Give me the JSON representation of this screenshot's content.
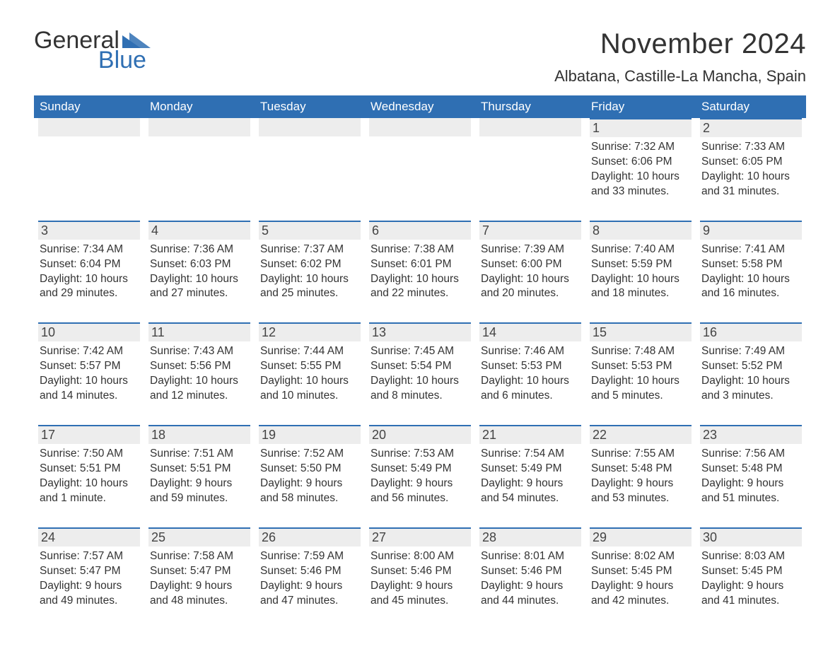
{
  "brand": {
    "logo_top": "General",
    "logo_bottom": "Blue",
    "logo_text_color": "#333333",
    "logo_accent_color": "#2f6fb3"
  },
  "title": {
    "month_year": "November 2024",
    "location": "Albatana, Castille-La Mancha, Spain",
    "title_fontsize": 40,
    "location_fontsize": 22,
    "text_color": "#333333"
  },
  "styling": {
    "header_bg": "#2f6fb3",
    "header_text": "#ffffff",
    "day_band_bg": "#ededed",
    "day_band_border": "#2f6fb3",
    "body_text": "#333333",
    "page_bg": "#ffffff",
    "weekday_fontsize": 17,
    "daynum_fontsize": 18,
    "detail_fontsize": 15.5
  },
  "weekdays": [
    "Sunday",
    "Monday",
    "Tuesday",
    "Wednesday",
    "Thursday",
    "Friday",
    "Saturday"
  ],
  "weeks": [
    [
      {
        "blank": true
      },
      {
        "blank": true
      },
      {
        "blank": true
      },
      {
        "blank": true
      },
      {
        "blank": true
      },
      {
        "num": "1",
        "sunrise": "Sunrise: 7:32 AM",
        "sunset": "Sunset: 6:06 PM",
        "day1": "Daylight: 10 hours",
        "day2": "and 33 minutes."
      },
      {
        "num": "2",
        "sunrise": "Sunrise: 7:33 AM",
        "sunset": "Sunset: 6:05 PM",
        "day1": "Daylight: 10 hours",
        "day2": "and 31 minutes."
      }
    ],
    [
      {
        "num": "3",
        "sunrise": "Sunrise: 7:34 AM",
        "sunset": "Sunset: 6:04 PM",
        "day1": "Daylight: 10 hours",
        "day2": "and 29 minutes."
      },
      {
        "num": "4",
        "sunrise": "Sunrise: 7:36 AM",
        "sunset": "Sunset: 6:03 PM",
        "day1": "Daylight: 10 hours",
        "day2": "and 27 minutes."
      },
      {
        "num": "5",
        "sunrise": "Sunrise: 7:37 AM",
        "sunset": "Sunset: 6:02 PM",
        "day1": "Daylight: 10 hours",
        "day2": "and 25 minutes."
      },
      {
        "num": "6",
        "sunrise": "Sunrise: 7:38 AM",
        "sunset": "Sunset: 6:01 PM",
        "day1": "Daylight: 10 hours",
        "day2": "and 22 minutes."
      },
      {
        "num": "7",
        "sunrise": "Sunrise: 7:39 AM",
        "sunset": "Sunset: 6:00 PM",
        "day1": "Daylight: 10 hours",
        "day2": "and 20 minutes."
      },
      {
        "num": "8",
        "sunrise": "Sunrise: 7:40 AM",
        "sunset": "Sunset: 5:59 PM",
        "day1": "Daylight: 10 hours",
        "day2": "and 18 minutes."
      },
      {
        "num": "9",
        "sunrise": "Sunrise: 7:41 AM",
        "sunset": "Sunset: 5:58 PM",
        "day1": "Daylight: 10 hours",
        "day2": "and 16 minutes."
      }
    ],
    [
      {
        "num": "10",
        "sunrise": "Sunrise: 7:42 AM",
        "sunset": "Sunset: 5:57 PM",
        "day1": "Daylight: 10 hours",
        "day2": "and 14 minutes."
      },
      {
        "num": "11",
        "sunrise": "Sunrise: 7:43 AM",
        "sunset": "Sunset: 5:56 PM",
        "day1": "Daylight: 10 hours",
        "day2": "and 12 minutes."
      },
      {
        "num": "12",
        "sunrise": "Sunrise: 7:44 AM",
        "sunset": "Sunset: 5:55 PM",
        "day1": "Daylight: 10 hours",
        "day2": "and 10 minutes."
      },
      {
        "num": "13",
        "sunrise": "Sunrise: 7:45 AM",
        "sunset": "Sunset: 5:54 PM",
        "day1": "Daylight: 10 hours",
        "day2": "and 8 minutes."
      },
      {
        "num": "14",
        "sunrise": "Sunrise: 7:46 AM",
        "sunset": "Sunset: 5:53 PM",
        "day1": "Daylight: 10 hours",
        "day2": "and 6 minutes."
      },
      {
        "num": "15",
        "sunrise": "Sunrise: 7:48 AM",
        "sunset": "Sunset: 5:53 PM",
        "day1": "Daylight: 10 hours",
        "day2": "and 5 minutes."
      },
      {
        "num": "16",
        "sunrise": "Sunrise: 7:49 AM",
        "sunset": "Sunset: 5:52 PM",
        "day1": "Daylight: 10 hours",
        "day2": "and 3 minutes."
      }
    ],
    [
      {
        "num": "17",
        "sunrise": "Sunrise: 7:50 AM",
        "sunset": "Sunset: 5:51 PM",
        "day1": "Daylight: 10 hours",
        "day2": "and 1 minute."
      },
      {
        "num": "18",
        "sunrise": "Sunrise: 7:51 AM",
        "sunset": "Sunset: 5:51 PM",
        "day1": "Daylight: 9 hours",
        "day2": "and 59 minutes."
      },
      {
        "num": "19",
        "sunrise": "Sunrise: 7:52 AM",
        "sunset": "Sunset: 5:50 PM",
        "day1": "Daylight: 9 hours",
        "day2": "and 58 minutes."
      },
      {
        "num": "20",
        "sunrise": "Sunrise: 7:53 AM",
        "sunset": "Sunset: 5:49 PM",
        "day1": "Daylight: 9 hours",
        "day2": "and 56 minutes."
      },
      {
        "num": "21",
        "sunrise": "Sunrise: 7:54 AM",
        "sunset": "Sunset: 5:49 PM",
        "day1": "Daylight: 9 hours",
        "day2": "and 54 minutes."
      },
      {
        "num": "22",
        "sunrise": "Sunrise: 7:55 AM",
        "sunset": "Sunset: 5:48 PM",
        "day1": "Daylight: 9 hours",
        "day2": "and 53 minutes."
      },
      {
        "num": "23",
        "sunrise": "Sunrise: 7:56 AM",
        "sunset": "Sunset: 5:48 PM",
        "day1": "Daylight: 9 hours",
        "day2": "and 51 minutes."
      }
    ],
    [
      {
        "num": "24",
        "sunrise": "Sunrise: 7:57 AM",
        "sunset": "Sunset: 5:47 PM",
        "day1": "Daylight: 9 hours",
        "day2": "and 49 minutes."
      },
      {
        "num": "25",
        "sunrise": "Sunrise: 7:58 AM",
        "sunset": "Sunset: 5:47 PM",
        "day1": "Daylight: 9 hours",
        "day2": "and 48 minutes."
      },
      {
        "num": "26",
        "sunrise": "Sunrise: 7:59 AM",
        "sunset": "Sunset: 5:46 PM",
        "day1": "Daylight: 9 hours",
        "day2": "and 47 minutes."
      },
      {
        "num": "27",
        "sunrise": "Sunrise: 8:00 AM",
        "sunset": "Sunset: 5:46 PM",
        "day1": "Daylight: 9 hours",
        "day2": "and 45 minutes."
      },
      {
        "num": "28",
        "sunrise": "Sunrise: 8:01 AM",
        "sunset": "Sunset: 5:46 PM",
        "day1": "Daylight: 9 hours",
        "day2": "and 44 minutes."
      },
      {
        "num": "29",
        "sunrise": "Sunrise: 8:02 AM",
        "sunset": "Sunset: 5:45 PM",
        "day1": "Daylight: 9 hours",
        "day2": "and 42 minutes."
      },
      {
        "num": "30",
        "sunrise": "Sunrise: 8:03 AM",
        "sunset": "Sunset: 5:45 PM",
        "day1": "Daylight: 9 hours",
        "day2": "and 41 minutes."
      }
    ]
  ]
}
